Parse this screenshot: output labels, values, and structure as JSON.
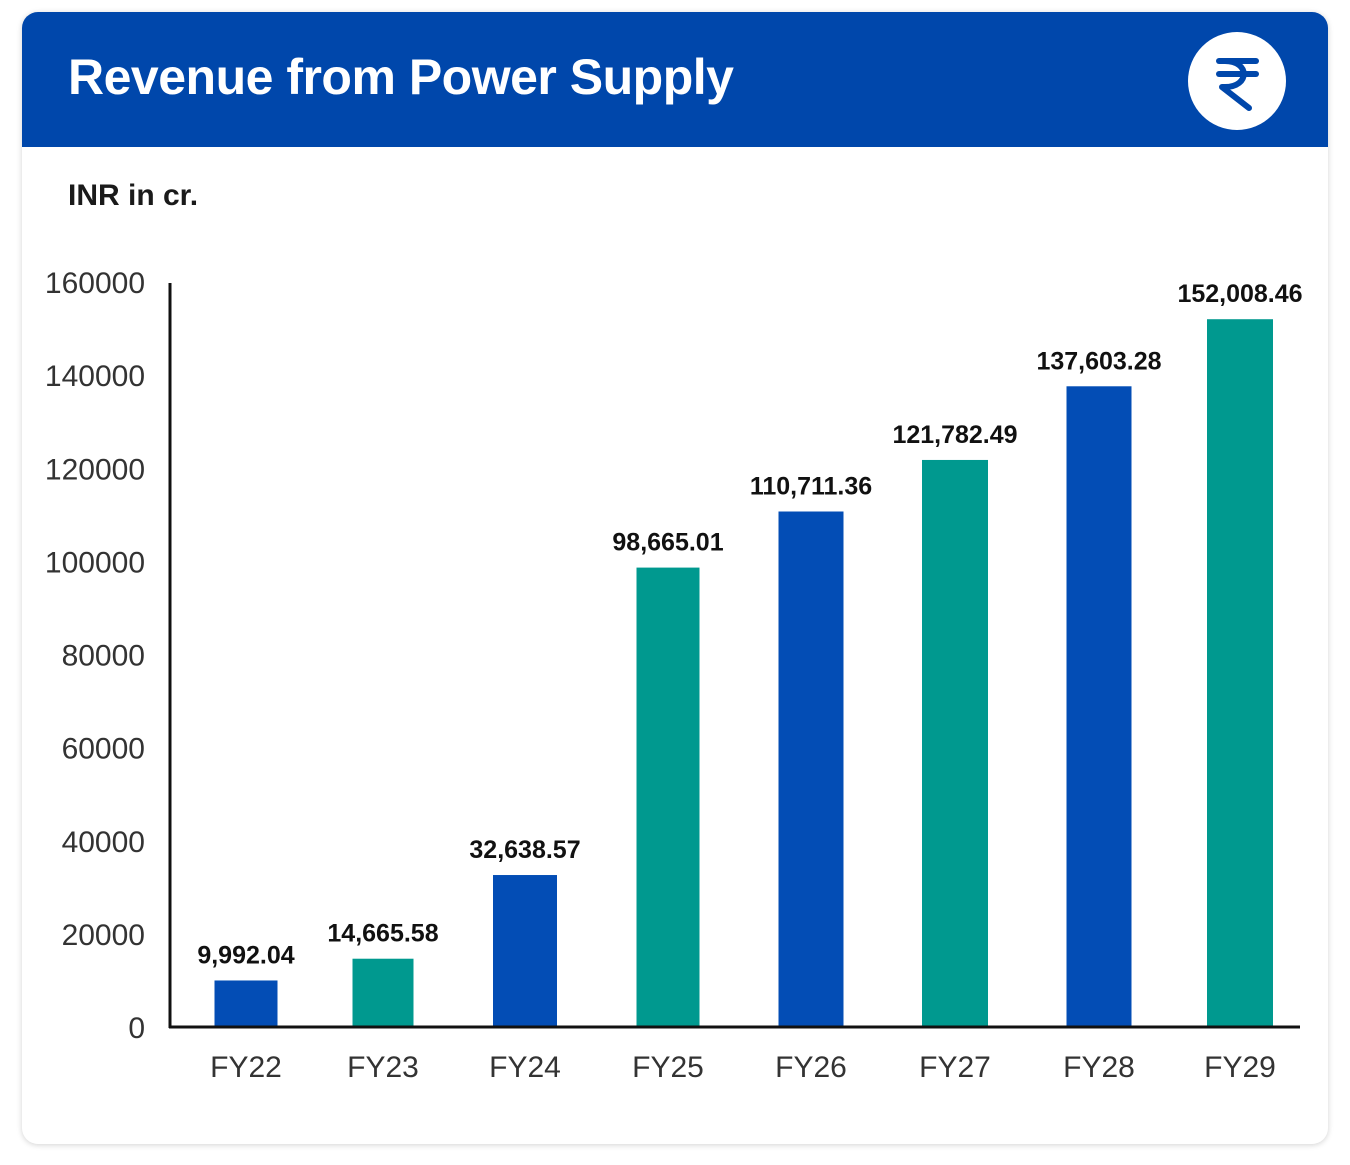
{
  "header": {
    "title": "Revenue from Power Supply",
    "icon": "rupee-icon"
  },
  "colors": {
    "header_bg": "#0047ab",
    "bar_blue": "#034db5",
    "bar_teal": "#00998f",
    "axis": "#111111",
    "tick_text": "#333333"
  },
  "chart_data": {
    "type": "bar",
    "title": "",
    "unit_label": "INR in cr.",
    "xlabel": "",
    "ylabel": "",
    "categories": [
      "FY22",
      "FY23",
      "FY24",
      "FY25",
      "FY26",
      "FY27",
      "FY28",
      "FY29"
    ],
    "values": [
      9992.04,
      14665.58,
      32638.57,
      98665.01,
      110711.36,
      121782.49,
      137603.28,
      152008.46
    ],
    "value_labels": [
      "9,992.04",
      "14,665.58",
      "32,638.57",
      "98,665.01",
      "110,711.36",
      "121,782.49",
      "137,603.28",
      "152,008.46"
    ],
    "bar_colors": [
      "#034db5",
      "#00998f",
      "#034db5",
      "#00998f",
      "#034db5",
      "#00998f",
      "#034db5",
      "#00998f"
    ],
    "yticks": [
      0,
      20000,
      40000,
      60000,
      80000,
      100000,
      120000,
      140000,
      160000
    ],
    "ytick_labels": [
      "0",
      "20000",
      "40000",
      "60000",
      "80000",
      "100000",
      "120000",
      "140000",
      "160000"
    ],
    "ylim": [
      0,
      160000
    ],
    "grid": false,
    "legend": "none"
  }
}
